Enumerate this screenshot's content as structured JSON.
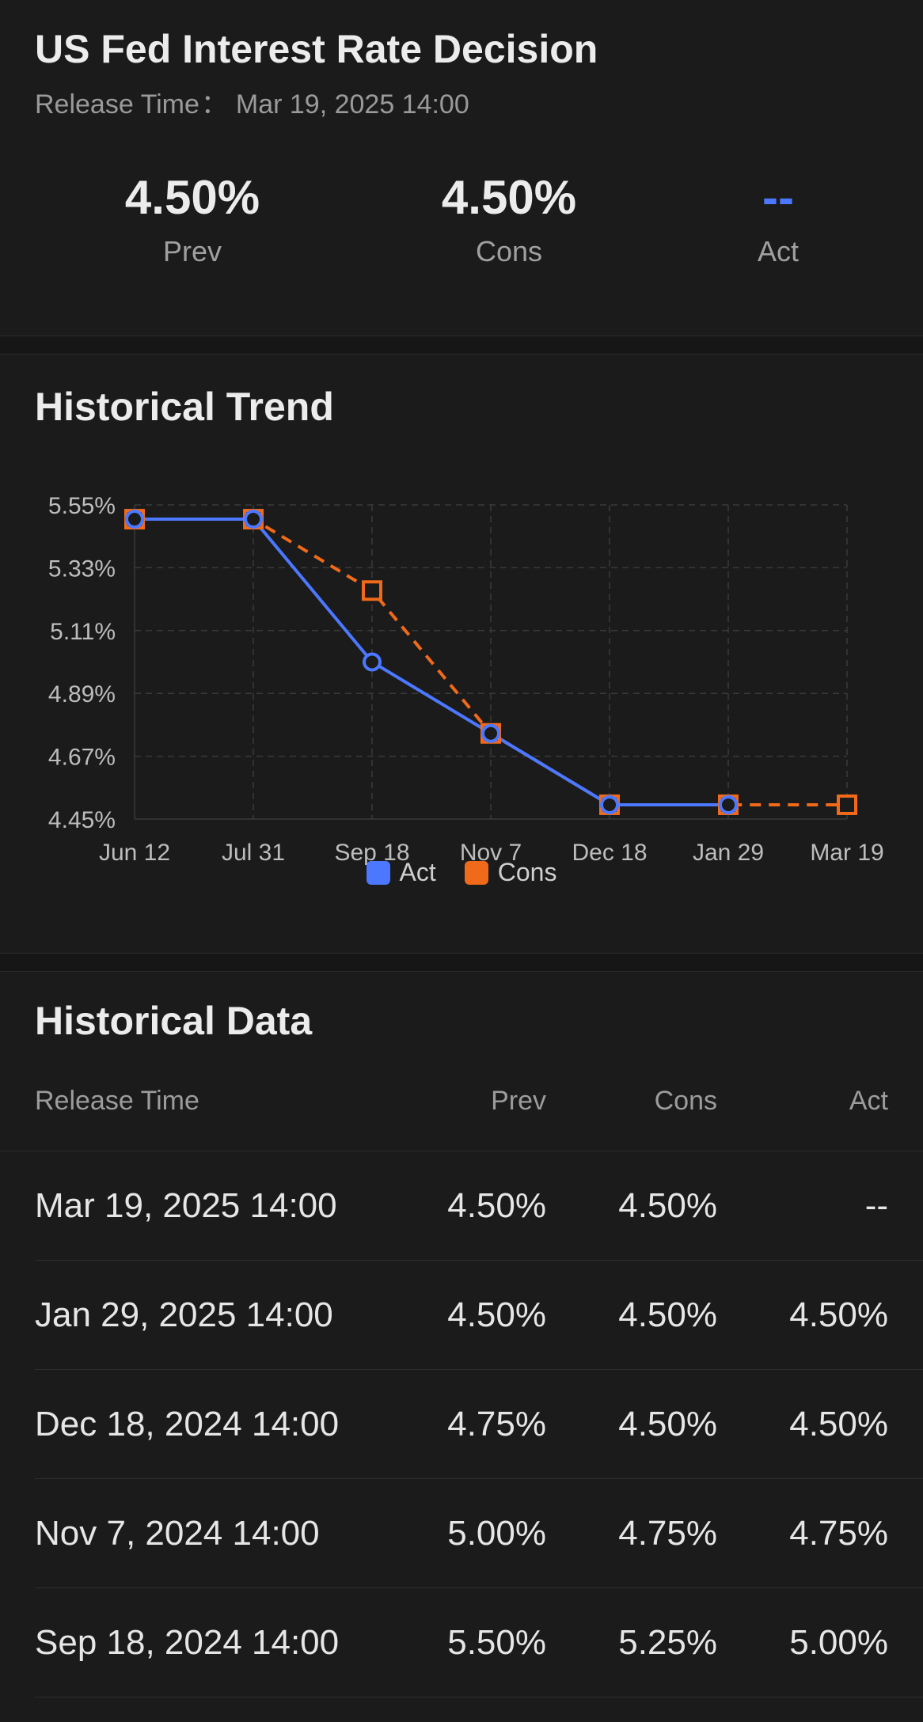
{
  "header": {
    "title": "US Fed Interest Rate Decision",
    "release_label": "Release Time",
    "release_sep": "：",
    "release_value": "Mar 19, 2025 14:00",
    "stats": [
      {
        "value": "4.50%",
        "label": "Prev"
      },
      {
        "value": "4.50%",
        "label": "Cons"
      },
      {
        "value": "--",
        "label": "Act"
      }
    ]
  },
  "trend": {
    "title": "Historical Trend"
  },
  "chart_data": {
    "type": "line",
    "title": "",
    "xlabel": "",
    "ylabel": "",
    "categories": [
      "Jun 12",
      "Jul 31",
      "Sep 18",
      "Nov 7",
      "Dec 18",
      "Jan 29",
      "Mar 19"
    ],
    "y_ticks": [
      "5.55%",
      "5.33%",
      "5.11%",
      "4.89%",
      "4.67%",
      "4.45%"
    ],
    "ylim": [
      4.45,
      5.55
    ],
    "grid": true,
    "legend": "bottom-center",
    "series": [
      {
        "name": "Act",
        "color": "#4c78ff",
        "values": [
          5.5,
          5.5,
          5.0,
          4.75,
          4.5,
          4.5,
          null
        ],
        "marker": "circle",
        "line": "solid"
      },
      {
        "name": "Cons",
        "color": "#f06a1a",
        "values": [
          5.5,
          5.5,
          5.25,
          4.75,
          4.5,
          4.5,
          4.5
        ],
        "marker": "square",
        "line": "dashed"
      }
    ]
  },
  "table": {
    "title": "Historical Data",
    "headers": {
      "time": "Release Time",
      "prev": "Prev",
      "cons": "Cons",
      "act": "Act"
    },
    "rows": [
      {
        "time": "Mar 19, 2025 14:00",
        "prev": "4.50%",
        "cons": "4.50%",
        "act": "--"
      },
      {
        "time": "Jan 29, 2025 14:00",
        "prev": "4.50%",
        "cons": "4.50%",
        "act": "4.50%"
      },
      {
        "time": "Dec 18, 2024 14:00",
        "prev": "4.75%",
        "cons": "4.50%",
        "act": "4.50%"
      },
      {
        "time": "Nov 7, 2024 14:00",
        "prev": "5.00%",
        "cons": "4.75%",
        "act": "4.75%"
      },
      {
        "time": "Sep 18, 2024 14:00",
        "prev": "5.50%",
        "cons": "5.25%",
        "act": "5.00%"
      }
    ]
  }
}
